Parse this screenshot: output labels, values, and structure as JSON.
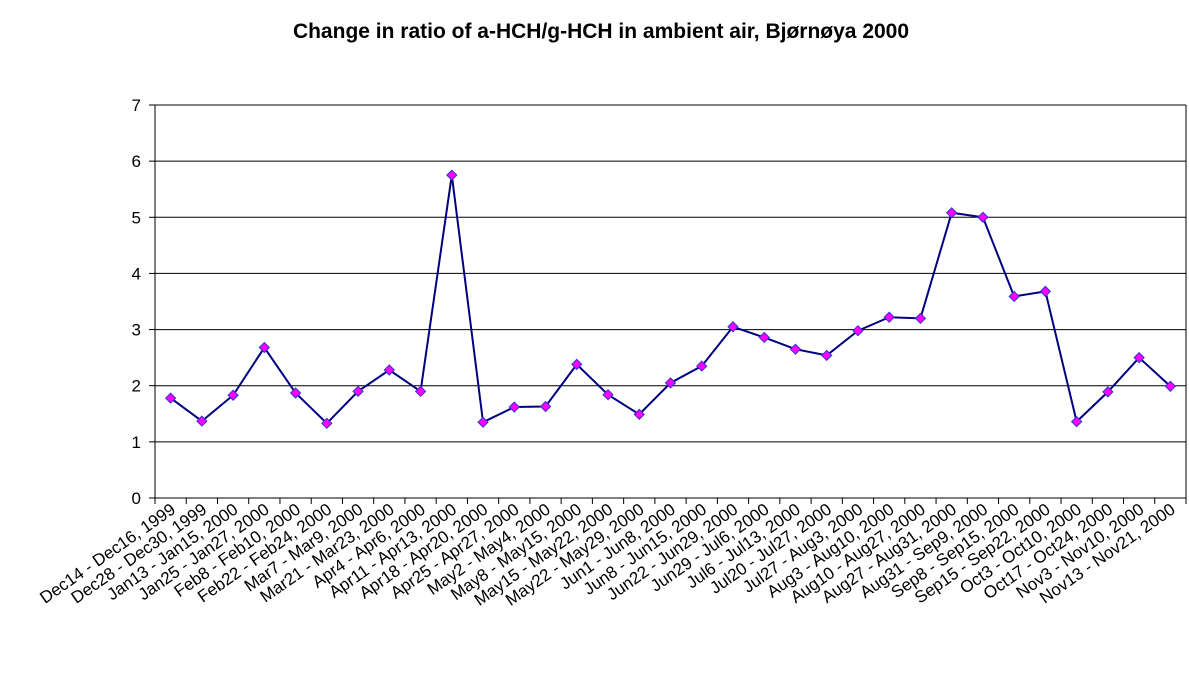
{
  "chart_data": {
    "type": "line",
    "title": "Change in ratio of a-HCH/g-HCH in ambient air, Bjørnøya 2000",
    "categories": [
      "Dec14 - Dec16, 1999",
      "Dec28 - Dec30, 1999",
      "Jan13 - Jan15, 2000",
      "Jan25 - Jan27, 2000",
      "Feb8 - Feb10, 2000",
      "Feb22 - Feb24, 2000",
      "Mar7 - Mar9, 2000",
      "Mar21 - Mar23, 2000",
      "Apr4 - Apr6, 2000",
      "Apr11 - Apr13, 2000",
      "Apr18 - Apr20, 2000",
      "Apr25 - Apr27, 2000",
      "May2 - May4, 2000",
      "May8 - May15, 2000",
      "May15 - May22, 2000",
      "May22 - May29, 2000",
      "Jun1 - Jun8, 2000",
      "Jun8 - Jun15, 2000",
      "Jun22 - Jun29, 2000",
      "Jun29 - Jul6, 2000",
      "Jul6 - Jul13, 2000",
      "Jul20 - Jul27, 2000",
      "Jul27 - Aug3, 2000",
      "Aug3 - Aug10, 2000",
      "Aug10 - Aug27, 2000",
      "Aug27 - Aug31, 2000",
      "Aug31 - Sep9, 2000",
      "Sep8 - Sep15, 2000",
      "Sep15 - Sep22, 2000",
      "Oct3 - Oct10, 2000",
      "Oct17 - Oct24, 2000",
      "Nov3 - Nov10, 2000",
      "Nov13 - Nov21, 2000"
    ],
    "values": [
      1.78,
      1.37,
      1.83,
      2.68,
      1.87,
      1.33,
      1.9,
      2.28,
      1.9,
      5.75,
      1.35,
      1.62,
      1.63,
      2.38,
      1.84,
      1.49,
      2.05,
      2.35,
      3.05,
      2.86,
      2.65,
      2.54,
      2.98,
      3.22,
      3.2,
      5.08,
      5.0,
      3.59,
      3.68,
      1.36,
      1.89,
      2.5,
      1.99
    ],
    "color": "#000080",
    "marker_color": "#ff00ff",
    "ylim": [
      0,
      7
    ],
    "yticks": [
      0,
      1,
      2,
      3,
      4,
      5,
      6,
      7
    ],
    "grid": true
  }
}
